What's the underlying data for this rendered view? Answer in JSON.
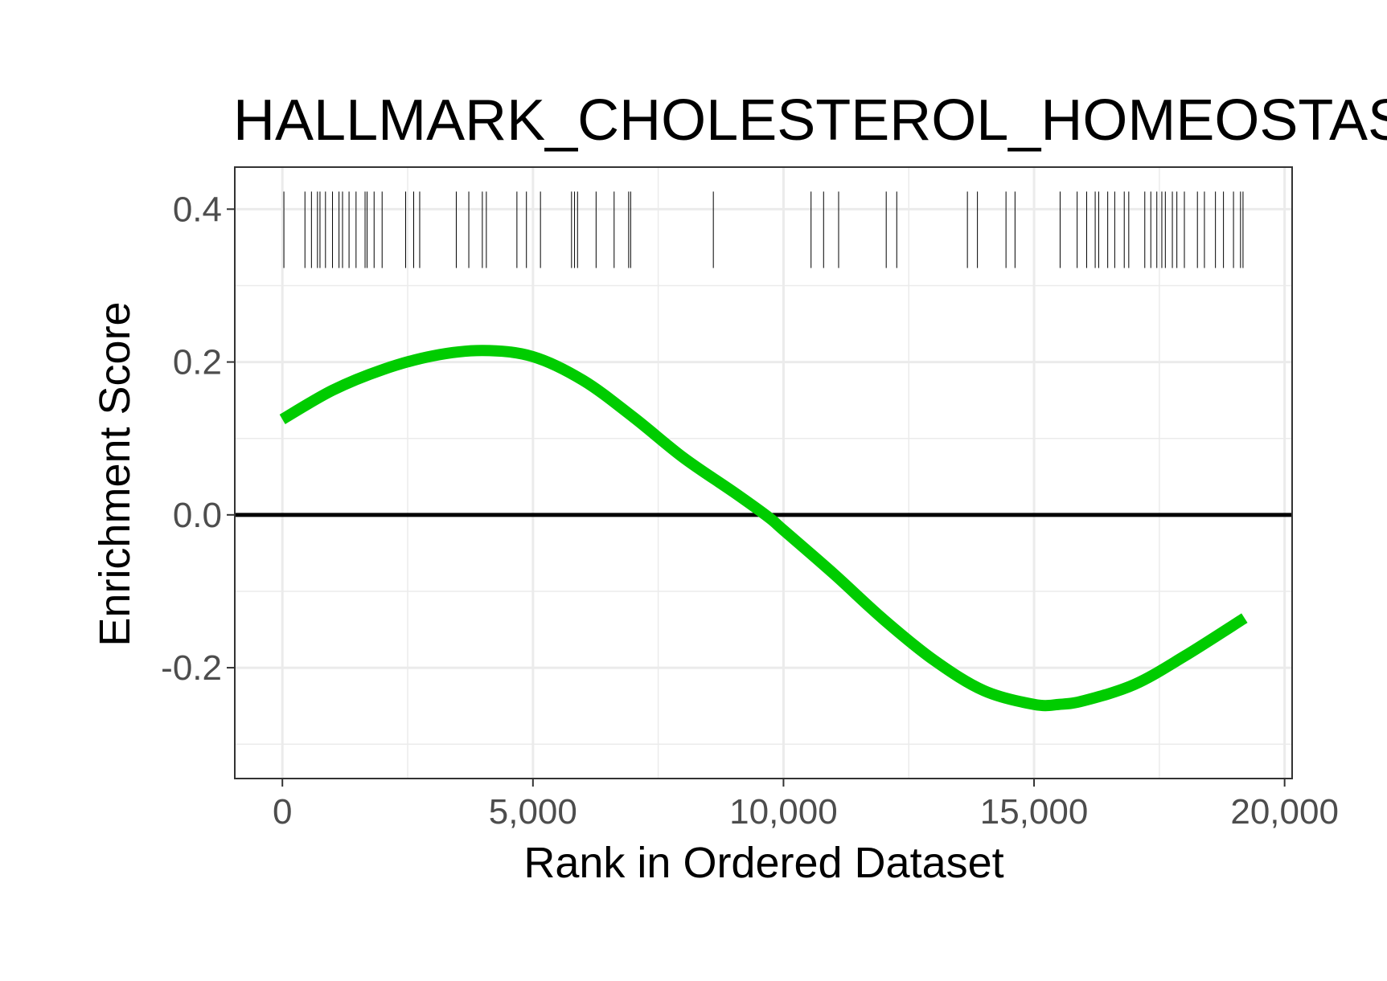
{
  "chart_data": {
    "type": "line",
    "title": "HALLMARK_CHOLESTEROL_HOMEOSTASIS",
    "xlabel": "Rank in Ordered Dataset",
    "ylabel": "Enrichment Score",
    "xlim": [
      -950,
      20150
    ],
    "ylim": [
      -0.345,
      0.455
    ],
    "x_ticks": [
      0,
      5000,
      10000,
      15000,
      20000
    ],
    "x_tick_labels": [
      "0",
      "5,000",
      "10,000",
      "15,000",
      "20,000"
    ],
    "y_ticks": [
      -0.2,
      0.0,
      0.2,
      0.4
    ],
    "y_tick_labels": [
      "-0.2",
      "0.0",
      "0.2",
      "0.4"
    ],
    "grid": true,
    "reference_line_y": 0,
    "series": [
      {
        "color": "#00cc00",
        "x": [
          0,
          1000,
          2000,
          3000,
          4000,
          5000,
          6000,
          7000,
          8000,
          9000,
          9700,
          10000,
          11000,
          12000,
          13000,
          14000,
          15000,
          15500,
          16000,
          17000,
          18000,
          19200
        ],
        "y": [
          0.125,
          0.163,
          0.19,
          0.208,
          0.215,
          0.207,
          0.176,
          0.128,
          0.075,
          0.03,
          -0.003,
          -0.02,
          -0.077,
          -0.137,
          -0.19,
          -0.23,
          -0.248,
          -0.248,
          -0.243,
          -0.222,
          -0.185,
          -0.135
        ]
      }
    ],
    "gene_hits": {
      "y_range": [
        0.323,
        0.423
      ],
      "positions": [
        30,
        450,
        580,
        700,
        750,
        860,
        1000,
        1130,
        1200,
        1330,
        1470,
        1650,
        1690,
        1830,
        1990,
        2460,
        2620,
        2740,
        3470,
        3720,
        3990,
        4070,
        4680,
        4870,
        5150,
        5770,
        5830,
        5890,
        6260,
        6620,
        6910,
        6950,
        8600,
        10550,
        10800,
        11100,
        12050,
        12260,
        13670,
        13870,
        14440,
        14620,
        15520,
        15860,
        16050,
        16220,
        16290,
        16470,
        16610,
        16800,
        16890,
        17210,
        17330,
        17450,
        17550,
        17620,
        17760,
        17850,
        18000,
        18260,
        18400,
        18620,
        18780,
        18980,
        19120,
        19170
      ]
    }
  }
}
